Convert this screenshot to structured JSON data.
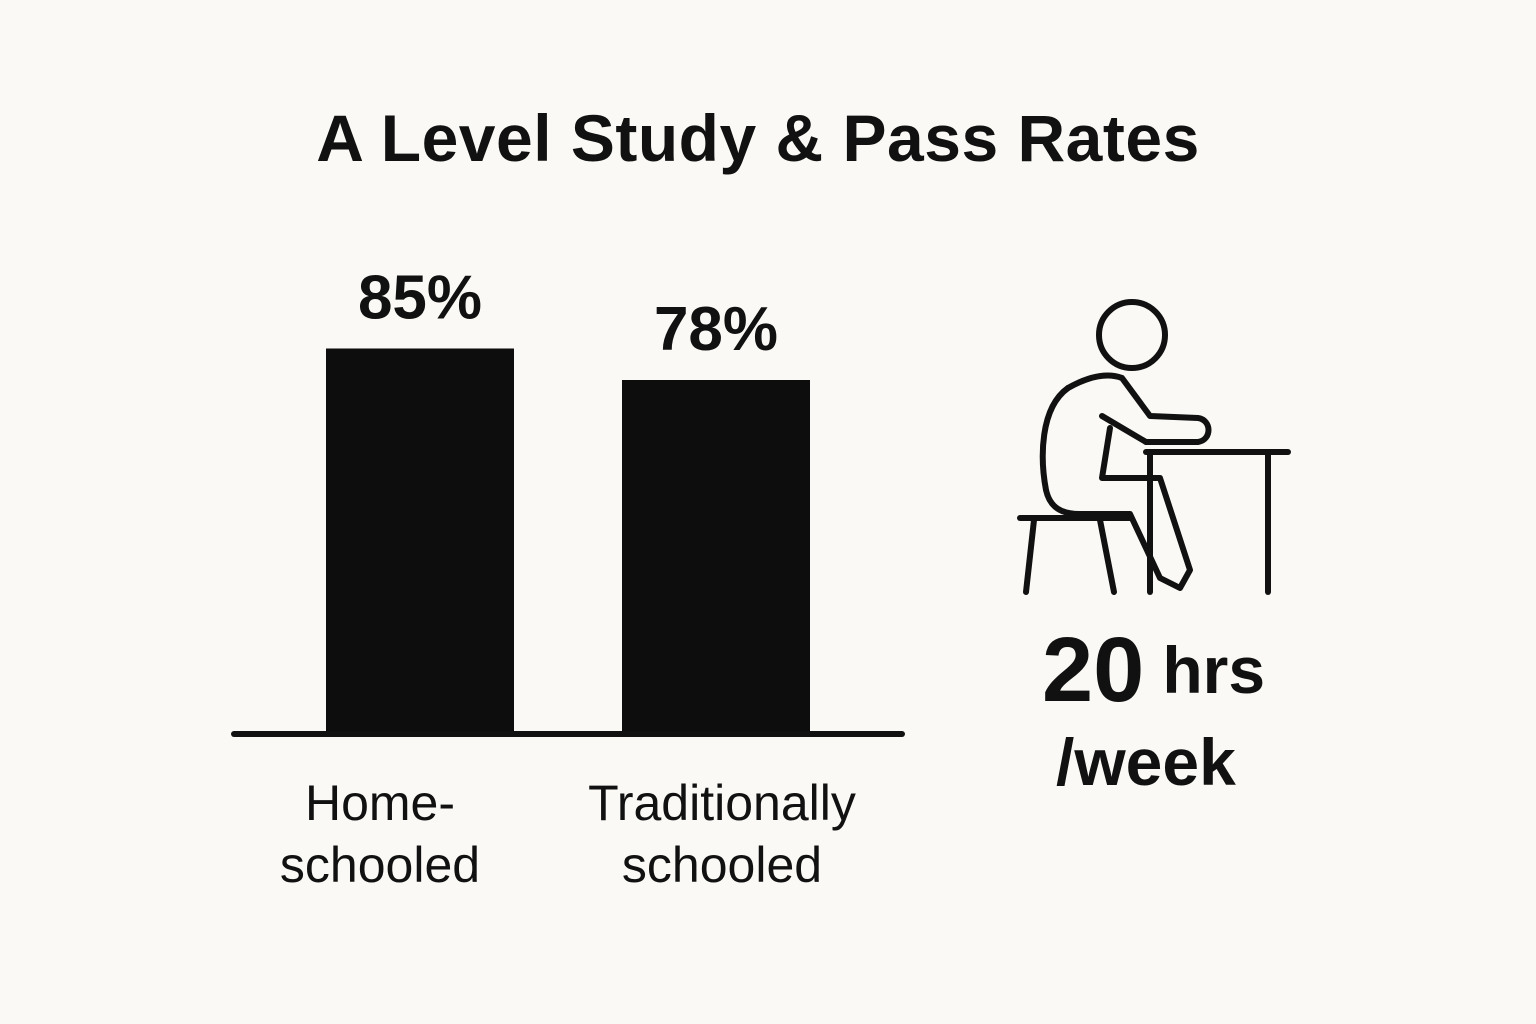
{
  "chart_data": {
    "type": "bar",
    "title": "A Level Study & Pass Rates",
    "categories": [
      "Home-\nschooled",
      "Traditionally\nschooled"
    ],
    "values": [
      85,
      78
    ],
    "value_labels": [
      "85%",
      "78%"
    ],
    "ylim": [
      0,
      100
    ],
    "bar_color": "#0d0d0d",
    "grid": false
  },
  "stat": {
    "icon": "student-at-desk-icon",
    "value": "20",
    "unit": "hrs",
    "period": "/week"
  }
}
